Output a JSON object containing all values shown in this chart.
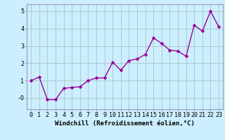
{
  "x": [
    0,
    1,
    2,
    3,
    4,
    5,
    6,
    7,
    8,
    9,
    10,
    11,
    12,
    13,
    14,
    15,
    16,
    17,
    18,
    19,
    20,
    21,
    22,
    23
  ],
  "y": [
    1.0,
    1.2,
    -0.1,
    -0.1,
    0.55,
    0.6,
    0.65,
    1.0,
    1.15,
    1.15,
    2.05,
    1.6,
    2.15,
    2.25,
    2.5,
    3.45,
    3.15,
    2.75,
    2.7,
    2.4,
    4.2,
    3.85,
    5.0,
    4.1
  ],
  "line_color": "#990099",
  "marker_color": "#990099",
  "bg_color": "#cceeff",
  "grid_color": "#aacccc",
  "xlabel": "Windchill (Refroidissement éolien,°C)",
  "ylim": [
    -0.65,
    5.4
  ],
  "xlim": [
    -0.5,
    23.5
  ],
  "ytick_vals": [
    0,
    1,
    2,
    3,
    4,
    5
  ],
  "ytick_labels": [
    "-0",
    "1",
    "2",
    "3",
    "4",
    "5"
  ],
  "xticks": [
    0,
    1,
    2,
    3,
    4,
    5,
    6,
    7,
    8,
    9,
    10,
    11,
    12,
    13,
    14,
    15,
    16,
    17,
    18,
    19,
    20,
    21,
    22,
    23
  ],
  "xlabel_fontsize": 6.5,
  "tick_fontsize": 6.0,
  "line_width": 1.0,
  "marker_size": 2.5
}
